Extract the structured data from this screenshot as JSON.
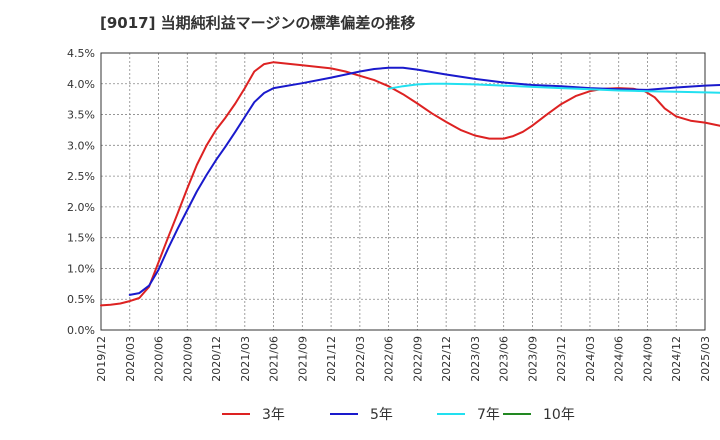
{
  "chart_data": {
    "type": "line",
    "title": "[9017]  当期純利益マージンの標準偏差の推移",
    "xlabel": "",
    "ylabel": "",
    "ylim": [
      0,
      4.5
    ],
    "yticks": [
      0,
      0.5,
      1.0,
      1.5,
      2.0,
      2.5,
      3.0,
      3.5,
      4.0,
      4.5
    ],
    "ytick_labels": [
      "0.0%",
      "0.5%",
      "1.0%",
      "1.5%",
      "2.0%",
      "2.5%",
      "3.0%",
      "3.5%",
      "4.0%",
      "4.5%"
    ],
    "xtick_labels": [
      "2019/12",
      "2020/03",
      "2020/06",
      "2020/09",
      "2020/12",
      "2021/03",
      "2021/06",
      "2021/09",
      "2021/12",
      "2022/03",
      "2022/06",
      "2022/09",
      "2022/12",
      "2023/03",
      "2023/06",
      "2023/09",
      "2023/12",
      "2024/03",
      "2024/06",
      "2024/09",
      "2024/12",
      "2025/03"
    ],
    "grid": true,
    "legend_position": "bottom",
    "series": [
      {
        "name": "3年",
        "color": "#dd2222",
        "points": [
          [
            0,
            0.4
          ],
          [
            0.33,
            0.41
          ],
          [
            0.67,
            0.43
          ],
          [
            1,
            0.47
          ],
          [
            1.33,
            0.52
          ],
          [
            1.67,
            0.7
          ],
          [
            2,
            1.1
          ],
          [
            2.33,
            1.5
          ],
          [
            2.67,
            1.9
          ],
          [
            3,
            2.3
          ],
          [
            3.33,
            2.68
          ],
          [
            3.67,
            3.0
          ],
          [
            4,
            3.25
          ],
          [
            4.33,
            3.45
          ],
          [
            4.67,
            3.68
          ],
          [
            5,
            3.93
          ],
          [
            5.33,
            4.2
          ],
          [
            5.67,
            4.32
          ],
          [
            6,
            4.35
          ],
          [
            7,
            4.3
          ],
          [
            8,
            4.25
          ],
          [
            8.5,
            4.2
          ],
          [
            9,
            4.13
          ],
          [
            9.5,
            4.06
          ],
          [
            10,
            3.96
          ],
          [
            10.5,
            3.83
          ],
          [
            11,
            3.68
          ],
          [
            11.5,
            3.52
          ],
          [
            12,
            3.38
          ],
          [
            12.5,
            3.25
          ],
          [
            13,
            3.16
          ],
          [
            13.5,
            3.11
          ],
          [
            14,
            3.11
          ],
          [
            14.33,
            3.15
          ],
          [
            14.67,
            3.22
          ],
          [
            15,
            3.32
          ],
          [
            15.5,
            3.5
          ],
          [
            16,
            3.67
          ],
          [
            16.5,
            3.8
          ],
          [
            17,
            3.88
          ],
          [
            17.5,
            3.92
          ],
          [
            18,
            3.93
          ],
          [
            18.5,
            3.92
          ],
          [
            18.9,
            3.88
          ],
          [
            19.25,
            3.78
          ],
          [
            19.6,
            3.6
          ],
          [
            20,
            3.47
          ],
          [
            20.5,
            3.4
          ],
          [
            21,
            3.37
          ],
          [
            21.5,
            3.32
          ],
          [
            22,
            3.24
          ],
          [
            22.5,
            3.12
          ],
          [
            23,
            2.97
          ],
          [
            23.5,
            2.77
          ],
          [
            23.6,
            2.72
          ]
        ]
      },
      {
        "name": "5年",
        "color": "#1a1acc",
        "points": [
          [
            1,
            0.57
          ],
          [
            1.33,
            0.6
          ],
          [
            1.67,
            0.72
          ],
          [
            2,
            0.98
          ],
          [
            2.33,
            1.32
          ],
          [
            2.67,
            1.65
          ],
          [
            3,
            1.95
          ],
          [
            3.33,
            2.25
          ],
          [
            3.67,
            2.52
          ],
          [
            4,
            2.76
          ],
          [
            4.33,
            2.98
          ],
          [
            4.67,
            3.22
          ],
          [
            5,
            3.46
          ],
          [
            5.33,
            3.7
          ],
          [
            5.67,
            3.85
          ],
          [
            6,
            3.93
          ],
          [
            7,
            4.01
          ],
          [
            8,
            4.1
          ],
          [
            9,
            4.2
          ],
          [
            9.5,
            4.24
          ],
          [
            10,
            4.26
          ],
          [
            10.5,
            4.26
          ],
          [
            11,
            4.23
          ],
          [
            12,
            4.15
          ],
          [
            13,
            4.08
          ],
          [
            14,
            4.02
          ],
          [
            15,
            3.98
          ],
          [
            16,
            3.96
          ],
          [
            17,
            3.93
          ],
          [
            18,
            3.91
          ],
          [
            19,
            3.9
          ],
          [
            20,
            3.94
          ],
          [
            21,
            3.97
          ],
          [
            22,
            3.99
          ],
          [
            23,
            4.01
          ],
          [
            23.6,
            4.03
          ]
        ]
      },
      {
        "name": "7年",
        "color": "#22e0f0",
        "points": [
          [
            10,
            3.92
          ],
          [
            10.5,
            3.96
          ],
          [
            11,
            3.99
          ],
          [
            11.5,
            4.0
          ],
          [
            12,
            4.0
          ],
          [
            13,
            3.99
          ],
          [
            14,
            3.97
          ],
          [
            15,
            3.95
          ],
          [
            16,
            3.93
          ],
          [
            17,
            3.91
          ],
          [
            18,
            3.89
          ],
          [
            19,
            3.88
          ],
          [
            20,
            3.87
          ],
          [
            21,
            3.86
          ],
          [
            22,
            3.85
          ],
          [
            23,
            3.85
          ],
          [
            23.6,
            3.85
          ]
        ]
      },
      {
        "name": "10年",
        "color": "#228822",
        "points": []
      }
    ]
  }
}
